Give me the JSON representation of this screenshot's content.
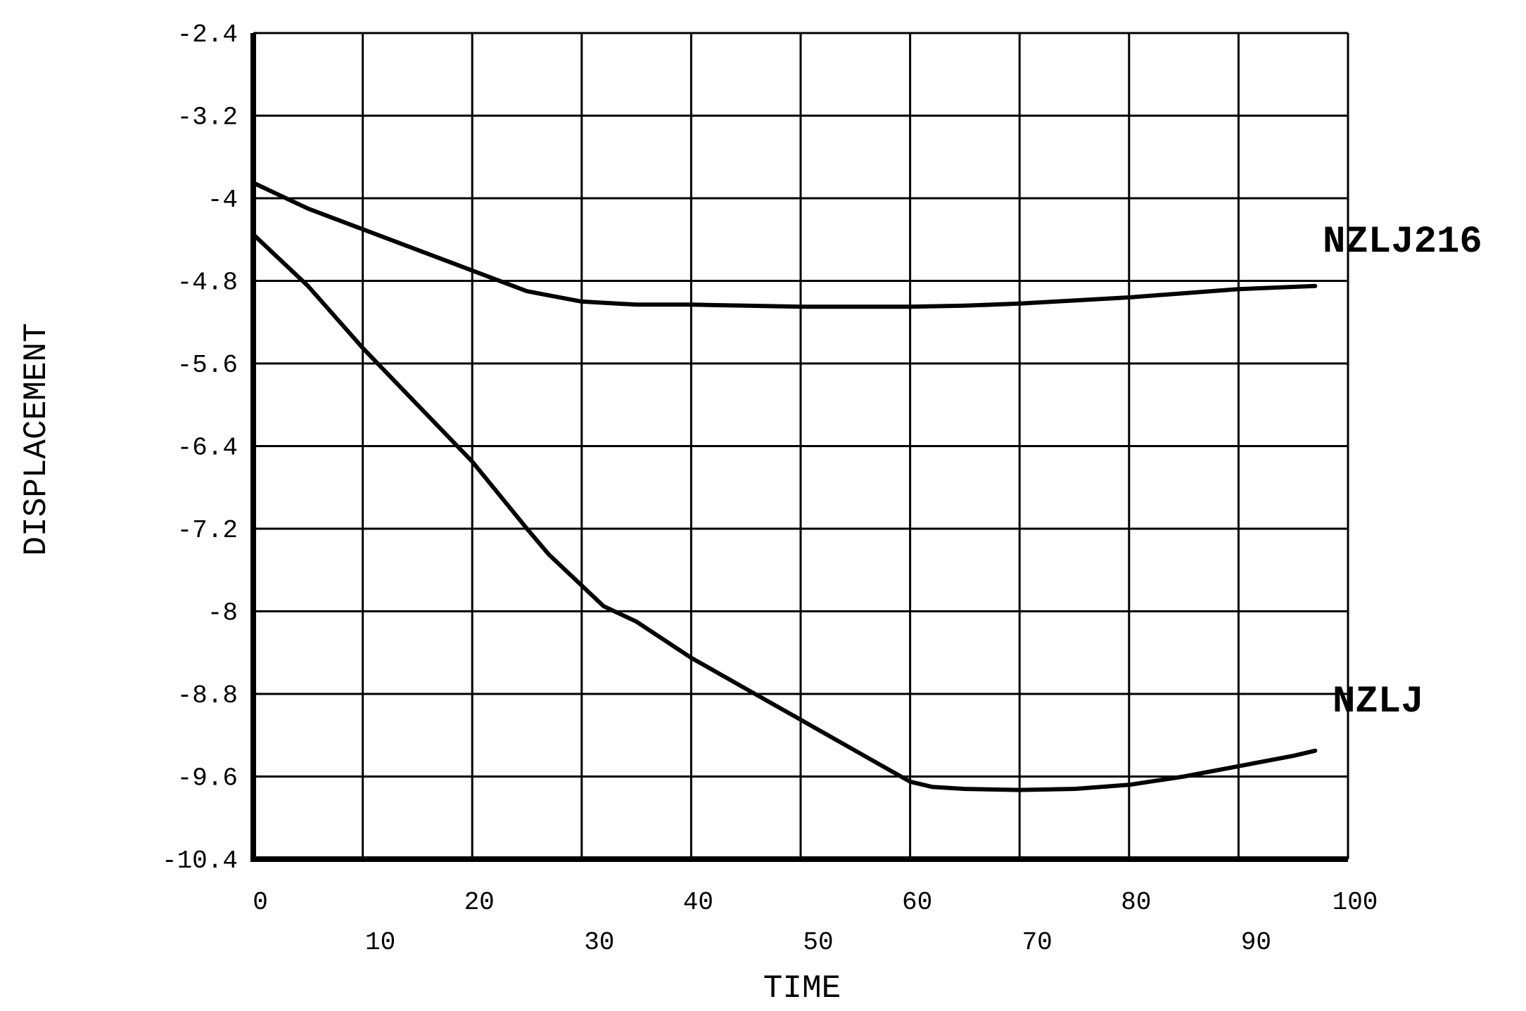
{
  "chart_data": {
    "type": "line",
    "title": "",
    "xlabel": "TIME",
    "ylabel": "DISPLACEMENT",
    "xlim": [
      0,
      100
    ],
    "ylim": [
      -10.4,
      -2.4
    ],
    "x_ticks_row1": [
      "0",
      "20",
      "40",
      "60",
      "80",
      "100"
    ],
    "x_ticks_row2": [
      "10",
      "30",
      "50",
      "70",
      "90"
    ],
    "y_ticks": [
      "-2.4",
      "-3.2",
      "-4",
      "-4.8",
      "-5.6",
      "-6.4",
      "-7.2",
      "-8",
      "-8.8",
      "-9.6",
      "-10.4"
    ],
    "grid": true,
    "series": [
      {
        "name": "NZLJ216",
        "x": [
          0,
          5,
          10,
          15,
          20,
          25,
          30,
          35,
          40,
          45,
          50,
          55,
          60,
          65,
          70,
          75,
          80,
          85,
          90,
          97
        ],
        "y": [
          -3.85,
          -4.1,
          -4.3,
          -4.5,
          -4.7,
          -4.9,
          -5.0,
          -5.03,
          -5.03,
          -5.04,
          -5.05,
          -5.05,
          -5.05,
          -5.04,
          -5.02,
          -4.99,
          -4.96,
          -4.92,
          -4.88,
          -4.85
        ]
      },
      {
        "name": "NZLJ",
        "x": [
          0,
          5,
          10,
          15,
          20,
          25,
          27,
          30,
          32,
          35,
          40,
          45,
          50,
          55,
          60,
          62,
          65,
          70,
          75,
          80,
          85,
          90,
          95,
          97
        ],
        "y": [
          -4.35,
          -4.85,
          -5.45,
          -6.0,
          -6.55,
          -7.2,
          -7.45,
          -7.75,
          -7.95,
          -8.1,
          -8.45,
          -8.75,
          -9.05,
          -9.35,
          -9.65,
          -9.7,
          -9.72,
          -9.73,
          -9.72,
          -9.68,
          -9.6,
          -9.5,
          -9.4,
          -9.35
        ]
      }
    ]
  }
}
